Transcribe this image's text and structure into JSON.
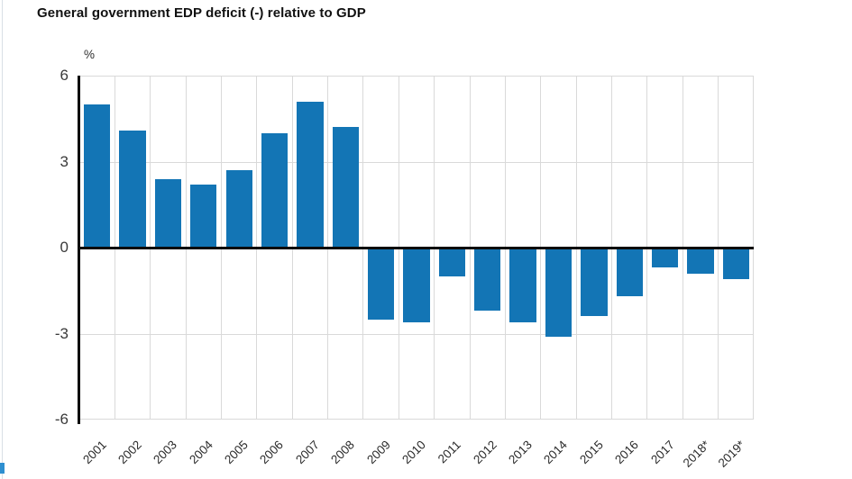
{
  "page": {
    "title": "General government EDP deficit (-) relative to GDP"
  },
  "chart_data": {
    "type": "bar",
    "title": "General government EDP deficit (-) relative to GDP",
    "xlabel": "",
    "ylabel": "%",
    "ylim": [
      -6,
      6
    ],
    "yticks": [
      6,
      3,
      0,
      -3,
      -6
    ],
    "grid": true,
    "legend": "none",
    "bar_color": "#1375b5",
    "grid_color": "#d9d9d9",
    "axis_color": "#0a0a0a",
    "categories": [
      "2001",
      "2002",
      "2003",
      "2004",
      "2005",
      "2006",
      "2007",
      "2008",
      "2009",
      "2010",
      "2011",
      "2012",
      "2013",
      "2014",
      "2015",
      "2016",
      "2017",
      "2018*",
      "2019*"
    ],
    "values": [
      5.0,
      4.1,
      2.4,
      2.2,
      2.7,
      4.0,
      5.1,
      4.2,
      -2.5,
      -2.6,
      -1.0,
      -2.2,
      -2.6,
      -3.1,
      -2.4,
      -1.7,
      -0.7,
      -0.9,
      -1.1
    ]
  }
}
